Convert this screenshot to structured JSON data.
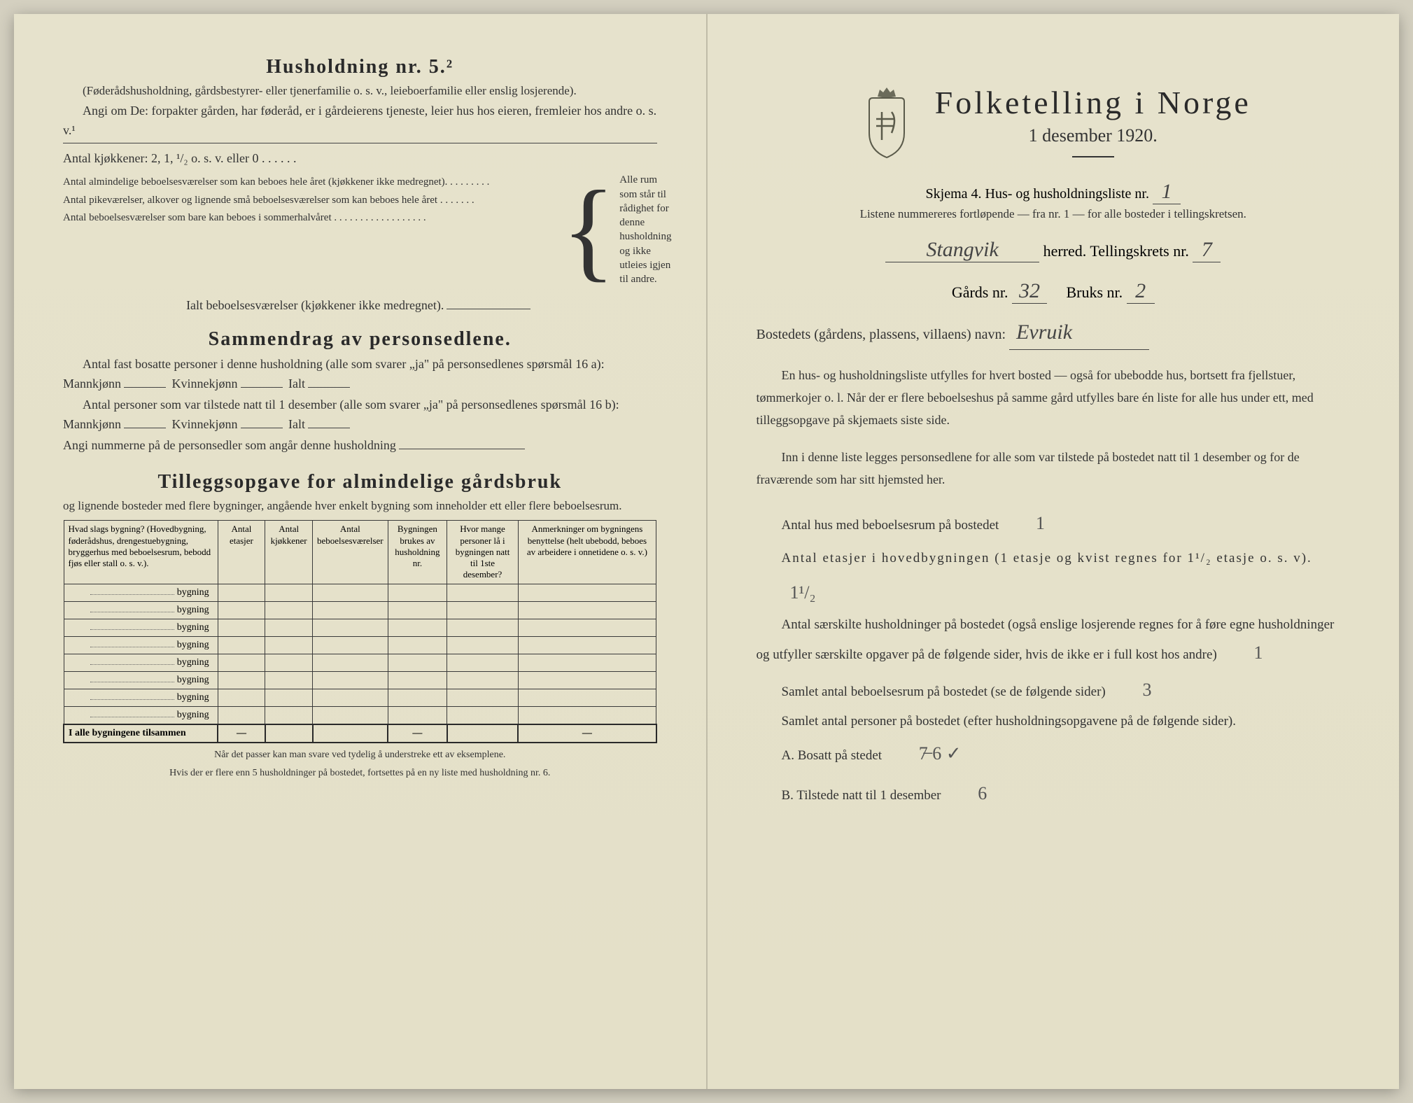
{
  "leftPage": {
    "husholdning": {
      "title": "Husholdning nr. 5.²",
      "intro": "(Føderådshusholdning, gårdsbestyrer- eller tjenerfamilie o. s. v., leieboerfamilie eller enslig losjerende).",
      "angi": "Angi om De: forpakter gården, har føderåd, er i gårdeierens tjeneste, leier hus hos eieren, fremleier hos andre o. s. v.¹",
      "kitchens": "Antal kjøkkener: 2, 1, ¹/₂ o. s. v. eller 0 . . . . . .",
      "braceItems": [
        "Antal almindelige beboelsesværelser som kan beboes hele året (kjøkkener ikke medregnet). . . . . . . . .",
        "Antal pikeværelser, alkover og lignende små beboelsesværelser som kan beboes hele året . . . . . . .",
        "Antal beboelsesværelser som bare kan beboes i sommerhalvåret . . . . . . . . . . . . . . . . . ."
      ],
      "braceNote": "Alle rum som står til rådighet for denne husholdning og ikke utleies igjen til andre.",
      "ialt": "Ialt beboelsesværelser (kjøkkener ikke medregnet)."
    },
    "sammendrag": {
      "title": "Sammendrag av personsedlene.",
      "l1": "Antal fast bosatte personer i denne husholdning (alle som svarer „ja\" på personsedlenes spørsmål 16 a): Mannkjønn",
      "kv": "Kvinnekjønn",
      "ialt": "Ialt",
      "l2": "Antal personer som var tilstede natt til 1 desember (alle som svarer „ja\" på personsedlenes spørsmål 16 b): Mannkjønn",
      "angi": "Angi nummerne på de personsedler som angår denne husholdning"
    },
    "tillegg": {
      "title": "Tilleggsopgave for almindelige gårdsbruk",
      "intro": "og lignende bosteder med flere bygninger, angående hver enkelt bygning som inneholder ett eller flere beboelsesrum.",
      "headers": [
        "Hvad slags bygning?\n(Hovedbygning, føderådshus, drengestuebygning, bryggerhus med beboelsesrum, bebodd fjøs eller stall o. s. v.).",
        "Antal etasjer",
        "Antal kjøkkener",
        "Antal beboelsesværelser",
        "Bygningen brukes av husholdning nr.",
        "Hvor mange personer lå i bygningen natt til 1ste desember?",
        "Anmerkninger om bygningens benyttelse (helt ubebodd, beboes av arbeidere i onnetidene o. s. v.)"
      ],
      "rowLabel": "bygning",
      "rowCount": 8,
      "totalLabel": "I alle bygningene tilsammen",
      "footnote1": "Når det passer kan man svare ved tydelig å understreke ett av eksemplene.",
      "footnote2": "Hvis der er flere enn 5 husholdninger på bostedet, fortsettes på en ny liste med husholdning nr. 6."
    }
  },
  "rightPage": {
    "title": "Folketelling i Norge",
    "subtitle": "1 desember 1920.",
    "skjema": "Skjema 4.   Hus- og husholdningsliste nr.",
    "skjemaNr": "1",
    "listNote": "Listene nummereres fortløpende — fra nr. 1 — for alle bosteder i tellingskretsen.",
    "herredLabel": "herred.   Tellingskrets nr.",
    "herredValue": "Stangvik",
    "kretsNr": "7",
    "gardsLabel": "Gårds nr.",
    "gardsNr": "32",
    "bruksLabel": "Bruks nr.",
    "bruksNr": "2",
    "bostedLabel": "Bostedets (gårdens, plassens, villaens) navn:",
    "bostedValue": "Evruik",
    "para1": "En hus- og husholdningsliste utfylles for hvert bosted — også for ubebodde hus, bortsett fra fjellstuer, tømmerkojer o. l.  Når der er flere beboelseshus på samme gård utfylles bare én liste for alle hus under ett, med tilleggsopgave på skjemaets siste side.",
    "para2": "Inn i denne liste legges personsedlene for alle som var tilstede på bostedet natt til 1 desember og for de fraværende som har sitt hjemsted her.",
    "antalHusLabel": "Antal hus med beboelsesrum på bostedet",
    "antalHusValue": "1",
    "etasjerLabel": "Antal etasjer i hovedbygningen (1 etasje og kvist regnes for 1¹/₂ etasje o. s. v).",
    "etasjerValue": "1¹/₂",
    "saerskilteLabel": "Antal særskilte husholdninger på bostedet (også enslige losjerende regnes for å føre egne husholdninger og utfyller særskilte opgaver på de følgende sider, hvis de ikke er i full kost hos andre)",
    "saerskilteValue": "1",
    "samletRumLabel": "Samlet antal beboelsesrum på bostedet (se de følgende sider)",
    "samletRumValue": "3",
    "samletPersLabel": "Samlet antal personer på bostedet (efter husholdningsopgavene på de følgende sider).",
    "bosattLabel": "A.  Bosatt på stedet",
    "bosattValue": "7̶ 6 ✓",
    "tilstedeLabel": "B.  Tilstede natt til 1 desember",
    "tilstedeValue": "6"
  },
  "colors": {
    "paper": "#e6e2cc",
    "ink": "#2a2a2a",
    "handwriting": "#555"
  }
}
